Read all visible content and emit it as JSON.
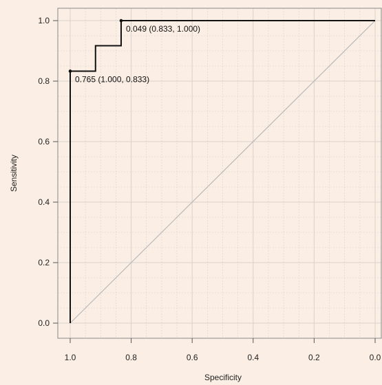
{
  "chart_data": {
    "type": "line",
    "title": "",
    "xlabel": "Specificity",
    "ylabel": "Sensitivity",
    "xlim": [
      1.0,
      0.0
    ],
    "ylim": [
      0.0,
      1.0
    ],
    "x_reversed": true,
    "grid": true,
    "x_ticks": [
      "1.0",
      "0.8",
      "0.6",
      "0.4",
      "0.2",
      "0.0"
    ],
    "y_ticks": [
      "0.0",
      "0.2",
      "0.4",
      "0.6",
      "0.8",
      "1.0"
    ],
    "series": [
      {
        "x": [
          1.0,
          1.0,
          0.917,
          0.917,
          0.833,
          0.833,
          0.0
        ],
        "y": [
          0.0,
          0.833,
          0.833,
          0.917,
          0.917,
          1.0,
          1.0
        ],
        "color": "#111111"
      }
    ],
    "reference_line": {
      "x": [
        1.0,
        0.0
      ],
      "y": [
        0.0,
        1.0
      ],
      "color": "#b9b9b9"
    },
    "annotations": [
      {
        "x": 1.0,
        "y": 0.833,
        "text": "0.765 (1.000, 0.833)"
      },
      {
        "x": 0.833,
        "y": 1.0,
        "text": "0.049 (0.833, 1.000)"
      }
    ],
    "colors": {
      "background": "#fbeee4",
      "grid": "#d9d2cc",
      "frame": "#8a8a8a"
    }
  }
}
